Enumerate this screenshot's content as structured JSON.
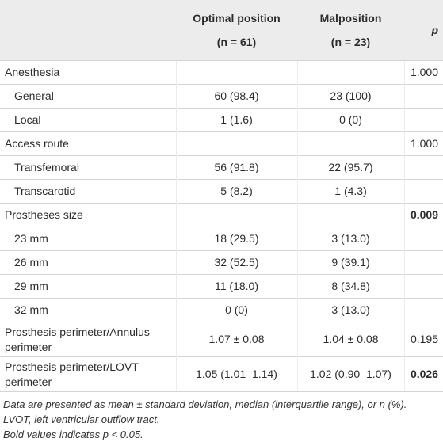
{
  "table": {
    "header": {
      "optimal": "Optimal position",
      "optimal_n": "(n = 61)",
      "malposition": "Malposition",
      "malposition_n": "(n = 23)",
      "p": "p"
    },
    "rows": [
      {
        "label": "Anesthesia",
        "p": "1.000"
      },
      {
        "label": "General",
        "sub": true,
        "optimal": "60 (98.4)",
        "malposition": "23 (100)"
      },
      {
        "label": "Local",
        "sub": true,
        "optimal": "1 (1.6)",
        "malposition": "0 (0)"
      },
      {
        "label": "Access route",
        "p": "1.000"
      },
      {
        "label": "Transfemoral",
        "sub": true,
        "optimal": "56 (91.8)",
        "malposition": "22 (95.7)"
      },
      {
        "label": "Transcarotid",
        "sub": true,
        "optimal": "5 (8.2)",
        "malposition": "1 (4.3)"
      },
      {
        "label": "Prostheses size",
        "p": "0.009",
        "p_bold": true
      },
      {
        "label": "23 mm",
        "sub": true,
        "optimal": "18 (29.5)",
        "malposition": "3 (13.0)"
      },
      {
        "label": "26 mm",
        "sub": true,
        "optimal": "32 (52.5)",
        "malposition": "9 (39.1)"
      },
      {
        "label": "29 mm",
        "sub": true,
        "optimal": "11 (18.0)",
        "malposition": "8 (34.8)"
      },
      {
        "label": "32 mm",
        "sub": true,
        "optimal": "0 (0)",
        "malposition": "3 (13.0)"
      },
      {
        "label": "Prosthesis perimeter/Annulus perimeter",
        "optimal": "1.07 ± 0.08",
        "malposition": "1.04 ± 0.08",
        "p": "0.195"
      },
      {
        "label": "Prosthesis perimeter/LOVT perimeter",
        "optimal": "1.05 (1.01–1.14)",
        "malposition": "1.02 (0.90–1.07)",
        "p": "0.026",
        "p_bold": true
      }
    ]
  },
  "footnotes": [
    "Data are presented as mean ± standard deviation, median (interquartile range), or n (%).",
    "LVOT, left ventricular outflow tract.",
    "Bold values indicates p < 0.05."
  ]
}
